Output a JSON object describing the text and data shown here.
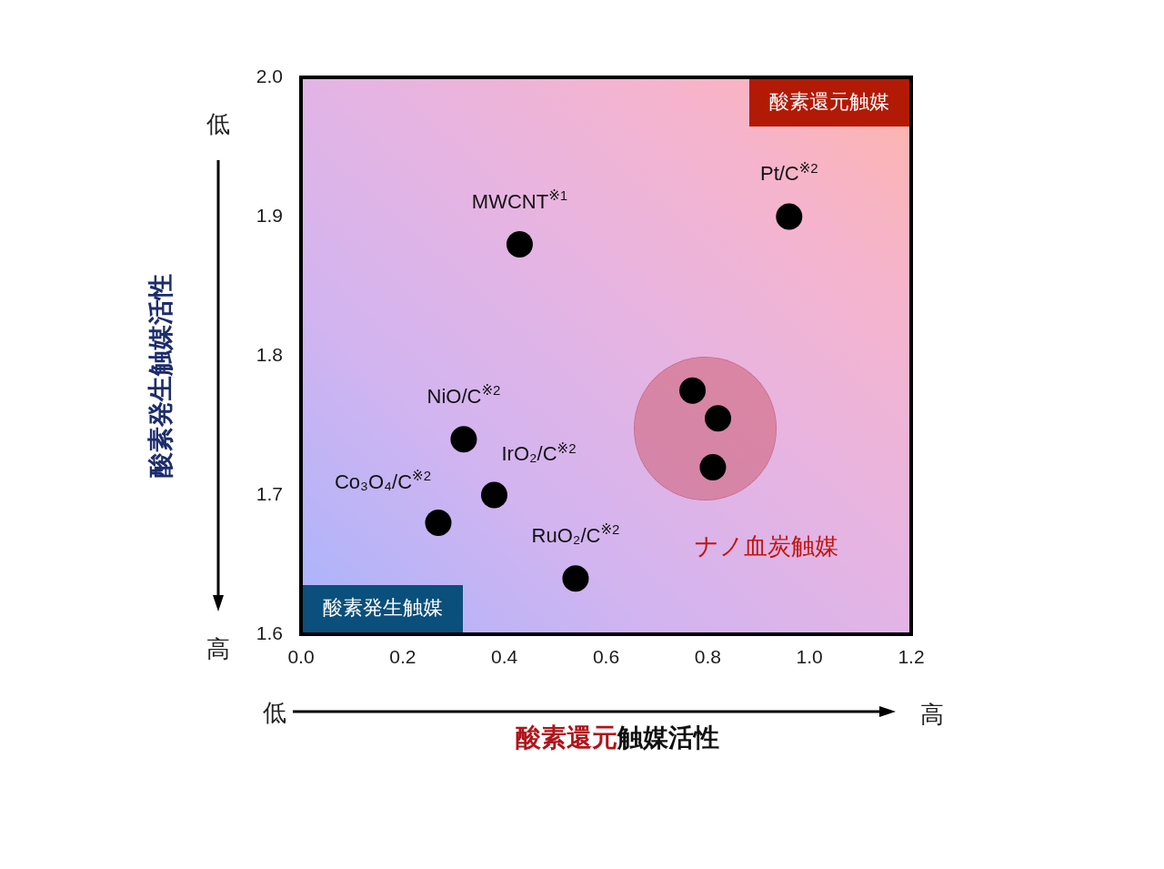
{
  "chart_data": {
    "type": "scatter",
    "xlabel": "酸素還元触媒活性",
    "ylabel": "酸素発生触媒活性",
    "xlim": [
      0,
      1.2
    ],
    "ylim": [
      1.6,
      2.0
    ],
    "xticks": [
      {
        "value": 0,
        "label": "0.0"
      },
      0.2,
      0.4,
      0.6,
      0.8,
      {
        "value": 1,
        "label": "1.0"
      },
      1.2
    ],
    "yticks": [
      1.6,
      1.7,
      1.8,
      1.9,
      {
        "value": 2,
        "label": "2.0"
      }
    ],
    "marker": "circle",
    "series": [
      {
        "name": "MWCNT$^{※1}$",
        "color": "#000000",
        "x": [
          0.43
        ],
        "values": [
          1.88
        ]
      },
      {
        "name": "Pt/C$^{※2}$",
        "color": "#000000",
        "x": [
          0.96
        ],
        "values": [
          1.9
        ]
      },
      {
        "name": "NiO/C$^{※2}$",
        "color": "#000000",
        "x": [
          0.32
        ],
        "values": [
          1.74
        ]
      },
      {
        "name": "IrO₂/C$^{※2}$",
        "color": "#000000",
        "x": [
          0.38
        ],
        "values": [
          1.7
        ]
      },
      {
        "name": "Co₃O₄/C$^{※2}$",
        "color": "#000000",
        "x": [
          0.27
        ],
        "values": [
          1.68
        ]
      },
      {
        "name": "RuO₂/C$^{※2}$",
        "color": "#000000",
        "x": [
          0.54
        ],
        "values": [
          1.64
        ]
      },
      {
        "name": "ナノ血炭触媒",
        "color": "#000000",
        "x": [
          0.77,
          0.82,
          0.81
        ],
        "values": [
          1.775,
          1.755,
          1.72
        ]
      }
    ],
    "annotations": [
      "酸素還元触媒",
      "酸素発生触媒",
      "低",
      "高",
      "低",
      "高"
    ]
  }
}
